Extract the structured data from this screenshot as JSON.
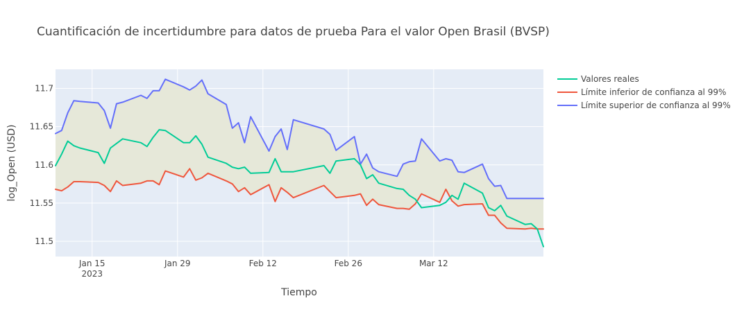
{
  "chart_data": {
    "type": "line",
    "title": "Cuantificación de incertidumbre para datos de prueba Para el valor Open Brasil (BVSP)",
    "xlabel": "Tiempo",
    "ylabel": "log_Open (USD)",
    "xlim": [
      "2023-01-09",
      "2023-03-30"
    ],
    "ylim": [
      11.48,
      11.725
    ],
    "x_ticks": [
      {
        "date": "2023-01-15",
        "label": "Jan 15",
        "sublabel": "2023"
      },
      {
        "date": "2023-01-29",
        "label": "Jan 29",
        "sublabel": ""
      },
      {
        "date": "2023-02-12",
        "label": "Feb 12",
        "sublabel": ""
      },
      {
        "date": "2023-02-26",
        "label": "Feb 26",
        "sublabel": ""
      },
      {
        "date": "2023-03-12",
        "label": "Mar 12",
        "sublabel": ""
      }
    ],
    "y_ticks": [
      11.5,
      11.55,
      11.6,
      11.65,
      11.7
    ],
    "y_tick_labels": [
      "11.5",
      "11.55",
      "11.6",
      "11.65",
      "11.7"
    ],
    "grid": true,
    "legend_position": "top-right",
    "band_fill": "#e6e8d9",
    "x": [
      "2023-01-09",
      "2023-01-10",
      "2023-01-11",
      "2023-01-12",
      "2023-01-13",
      "2023-01-16",
      "2023-01-17",
      "2023-01-18",
      "2023-01-19",
      "2023-01-20",
      "2023-01-23",
      "2023-01-24",
      "2023-01-25",
      "2023-01-26",
      "2023-01-27",
      "2023-01-30",
      "2023-01-31",
      "2023-02-01",
      "2023-02-02",
      "2023-02-03",
      "2023-02-06",
      "2023-02-07",
      "2023-02-08",
      "2023-02-09",
      "2023-02-10",
      "2023-02-13",
      "2023-02-14",
      "2023-02-15",
      "2023-02-16",
      "2023-02-17",
      "2023-02-22",
      "2023-02-23",
      "2023-02-24",
      "2023-02-27",
      "2023-02-28",
      "2023-03-01",
      "2023-03-02",
      "2023-03-03",
      "2023-03-06",
      "2023-03-07",
      "2023-03-08",
      "2023-03-09",
      "2023-03-10",
      "2023-03-13",
      "2023-03-14",
      "2023-03-15",
      "2023-03-16",
      "2023-03-17",
      "2023-03-20",
      "2023-03-21",
      "2023-03-22",
      "2023-03-23",
      "2023-03-24",
      "2023-03-27",
      "2023-03-28",
      "2023-03-29",
      "2023-03-30"
    ],
    "series": [
      {
        "name": "Valores reales",
        "color": "#00cc96",
        "values": [
          11.599,
          11.614,
          11.631,
          11.625,
          11.622,
          11.616,
          11.602,
          11.622,
          11.628,
          11.634,
          11.629,
          11.624,
          11.636,
          11.646,
          11.645,
          11.629,
          11.629,
          11.638,
          11.627,
          11.61,
          11.602,
          11.597,
          11.595,
          11.597,
          11.589,
          11.59,
          11.608,
          11.591,
          11.591,
          11.591,
          11.599,
          11.589,
          11.605,
          11.608,
          11.6,
          11.582,
          11.587,
          11.576,
          11.569,
          11.568,
          11.56,
          11.555,
          11.544,
          11.547,
          11.551,
          11.56,
          11.555,
          11.576,
          11.563,
          11.544,
          11.54,
          11.547,
          11.533,
          11.522,
          11.523,
          11.516,
          11.493
        ]
      },
      {
        "name": "Límite inferior de confianza al 99%",
        "color": "#ef553b",
        "values": [
          11.568,
          11.566,
          11.571,
          11.578,
          11.578,
          11.577,
          11.573,
          11.565,
          11.579,
          11.573,
          11.576,
          11.579,
          11.579,
          11.574,
          11.592,
          11.584,
          11.595,
          11.58,
          11.583,
          11.589,
          11.579,
          11.575,
          11.565,
          11.57,
          11.561,
          11.574,
          11.552,
          11.57,
          11.564,
          11.557,
          11.573,
          11.565,
          11.557,
          11.56,
          11.562,
          11.547,
          11.555,
          11.548,
          11.543,
          11.543,
          11.542,
          11.549,
          11.562,
          11.551,
          11.568,
          11.553,
          11.546,
          11.548,
          11.549,
          11.534,
          11.534,
          11.524,
          11.517,
          11.516,
          11.517,
          11.516,
          11.516
        ]
      },
      {
        "name": "Límite superior de confianza al 99%",
        "color": "#636efa",
        "values": [
          11.641,
          11.645,
          11.668,
          11.684,
          11.683,
          11.681,
          11.671,
          11.648,
          11.68,
          11.682,
          11.691,
          11.687,
          11.697,
          11.697,
          11.712,
          11.702,
          11.698,
          11.703,
          11.711,
          11.693,
          11.679,
          11.648,
          11.655,
          11.629,
          11.663,
          11.618,
          11.637,
          11.647,
          11.62,
          11.659,
          11.647,
          11.64,
          11.619,
          11.637,
          11.601,
          11.614,
          11.596,
          11.591,
          11.585,
          11.601,
          11.604,
          11.605,
          11.634,
          11.605,
          11.608,
          11.606,
          11.591,
          11.59,
          11.601,
          11.582,
          11.572,
          11.573,
          11.556,
          11.556,
          11.556,
          11.556,
          11.556
        ]
      }
    ]
  }
}
